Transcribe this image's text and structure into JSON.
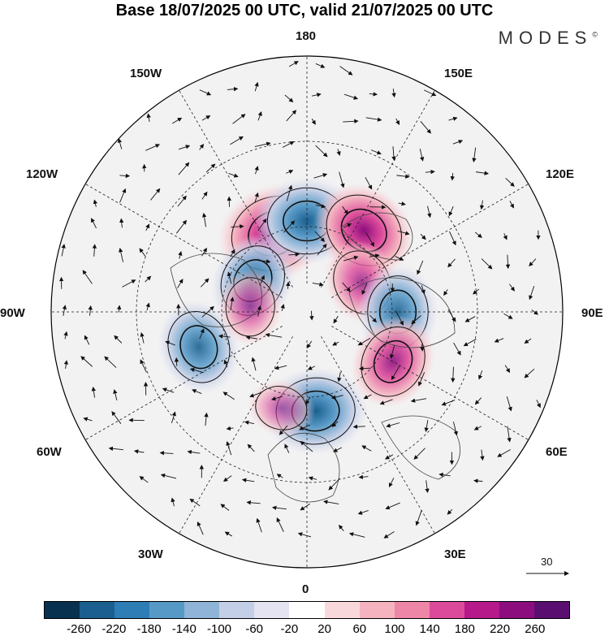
{
  "title": "Base 18/07/2025 00 UTC, valid 21/07/2025 00 UTC",
  "brand": "MODES",
  "brand_mark": "©",
  "longitude_labels": {
    "lon_180": "180",
    "lon_150E": "150E",
    "lon_120E": "120E",
    "lon_90E": "90E",
    "lon_60E": "60E",
    "lon_30E": "30E",
    "lon_0": "0",
    "lon_30W": "30W",
    "lon_60W": "60W",
    "lon_90W": "90W",
    "lon_120W": "120W",
    "lon_150W": "150W"
  },
  "reference_vector": "30",
  "colorbar": {
    "colors": [
      "#08304f",
      "#1a5f8f",
      "#2e7db5",
      "#5799c6",
      "#8fb4d8",
      "#c3cfe6",
      "#e3e3f1",
      "#ffffff",
      "#f9d8dc",
      "#f4b3bf",
      "#ee86a8",
      "#dc4b9b",
      "#b6198a",
      "#8c0d7e",
      "#5a0f70"
    ],
    "ticks": [
      "-260",
      "-220",
      "-180",
      "-140",
      "-100",
      "-60",
      "-20",
      "20",
      "60",
      "100",
      "140",
      "180",
      "220",
      "260"
    ]
  },
  "anomalies": [
    {
      "sign": "positive",
      "level": 260,
      "lon": -157,
      "lat": 60
    },
    {
      "sign": "negative",
      "level": 220,
      "lon": 180,
      "lat": 58
    },
    {
      "sign": "positive",
      "level": 220,
      "lon": 145,
      "lat": 55
    },
    {
      "sign": "positive",
      "level": 140,
      "lon": 118,
      "lat": 68
    },
    {
      "sign": "negative",
      "level": 180,
      "lon": 90,
      "lat": 58
    },
    {
      "sign": "positive",
      "level": 180,
      "lon": 60,
      "lat": 55
    },
    {
      "sign": "negative",
      "level": 220,
      "lon": 5,
      "lat": 55
    },
    {
      "sign": "positive",
      "level": 60,
      "lon": -15,
      "lat": 55
    },
    {
      "sign": "negative",
      "level": 180,
      "lon": -120,
      "lat": 68
    },
    {
      "sign": "negative",
      "level": 180,
      "lon": -72,
      "lat": 50
    },
    {
      "sign": "positive",
      "level": 100,
      "lon": -95,
      "lat": 70
    }
  ]
}
